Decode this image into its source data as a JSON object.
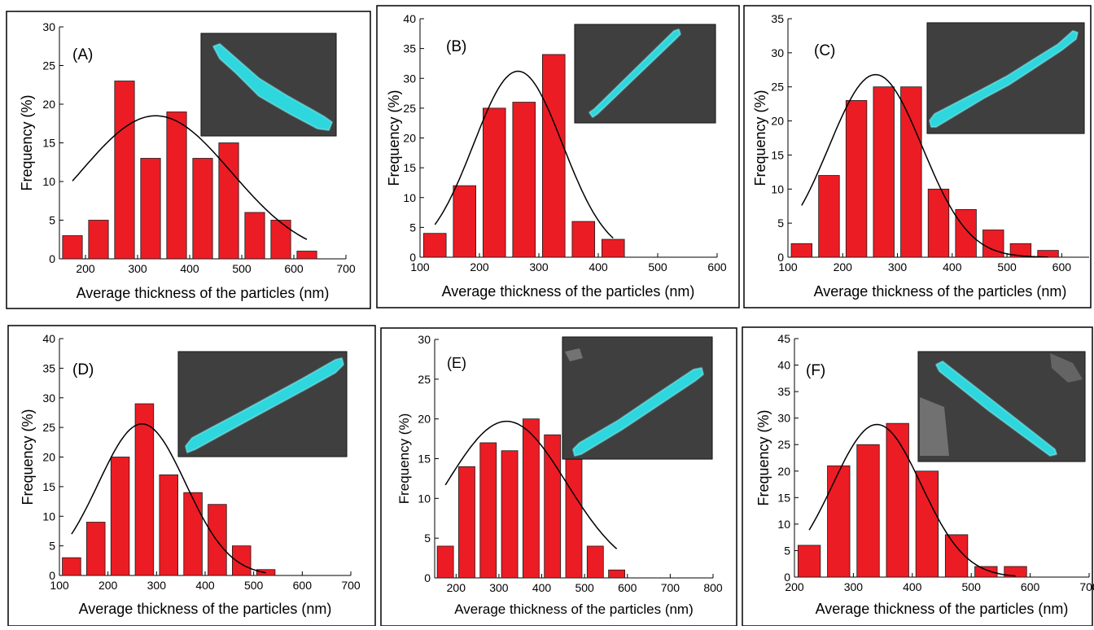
{
  "colors": {
    "bar_fill": "#ec1c24",
    "bar_stroke": "#1a1a1a",
    "curve": "#000000",
    "inset_bg": "#3a3a3a",
    "particle": "#2fd6dd"
  },
  "chart_data": [
    {
      "type": "bar",
      "panel_label": "(A)",
      "xlabel": "Average thickness of the particles (nm)",
      "ylabel": "Frequency (%)",
      "xlim": [
        150,
        700
      ],
      "ylim": [
        0,
        30
      ],
      "xticks": [
        "200",
        "300",
        "400",
        "500",
        "600",
        "700"
      ],
      "yticks": [
        "0",
        "5",
        "10",
        "15",
        "20",
        "25",
        "30"
      ],
      "bin_centers": [
        175,
        225,
        275,
        325,
        375,
        425,
        475,
        525,
        575,
        625
      ],
      "values": [
        3,
        5,
        23,
        13,
        19,
        13,
        15,
        6,
        5,
        1
      ],
      "fit": {
        "type": "gaussian",
        "mean": 335,
        "peak": 18.5,
        "sigma": 145,
        "x_range": [
          175,
          625
        ]
      },
      "inset": "sem-micrograph-particle",
      "legend": "none",
      "grid": false
    },
    {
      "type": "bar",
      "panel_label": "(B)",
      "xlabel": "Average thickness of the particles (nm)",
      "ylabel": "Frequency (%)",
      "xlim": [
        100,
        600
      ],
      "ylim": [
        0,
        40
      ],
      "xticks": [
        "100",
        "200",
        "300",
        "400",
        "500",
        "600"
      ],
      "yticks": [
        "0",
        "5",
        "10",
        "15",
        "20",
        "25",
        "30",
        "35",
        "40"
      ],
      "bin_centers": [
        125,
        175,
        225,
        275,
        325,
        375,
        425
      ],
      "values": [
        4,
        12,
        25,
        26,
        34,
        6,
        3
      ],
      "fit": {
        "type": "gaussian",
        "mean": 265,
        "peak": 31.2,
        "sigma": 75,
        "x_range": [
          125,
          425
        ]
      },
      "inset": "sem-micrograph-particle",
      "legend": "none",
      "grid": false
    },
    {
      "type": "bar",
      "panel_label": "(C)",
      "xlabel": "Average thickness of the particles (nm)",
      "ylabel": "Frequency (%)",
      "xlim": [
        100,
        650
      ],
      "ylim": [
        0,
        35
      ],
      "xticks": [
        "100",
        "200",
        "300",
        "400",
        "500",
        "600"
      ],
      "yticks": [
        "0",
        "5",
        "10",
        "15",
        "20",
        "25",
        "30",
        "35"
      ],
      "bin_centers": [
        125,
        175,
        225,
        275,
        325,
        375,
        425,
        475,
        525,
        575
      ],
      "values": [
        2,
        12,
        23,
        25,
        25,
        10,
        7,
        4,
        2,
        1
      ],
      "fit": {
        "type": "gaussian",
        "mean": 260,
        "peak": 26.8,
        "sigma": 85,
        "x_range": [
          125,
          575
        ]
      },
      "inset": "sem-micrograph-particle",
      "legend": "none",
      "grid": false
    },
    {
      "type": "bar",
      "panel_label": "(D)",
      "xlabel": "Average thickness of the particles (nm)",
      "ylabel": "Frequency (%)",
      "xlim": [
        100,
        700
      ],
      "ylim": [
        0,
        40
      ],
      "xticks": [
        "100",
        "200",
        "300",
        "400",
        "500",
        "600",
        "700"
      ],
      "yticks": [
        "0",
        "5",
        "10",
        "15",
        "20",
        "25",
        "30",
        "35",
        "40"
      ],
      "bin_centers": [
        125,
        175,
        225,
        275,
        325,
        375,
        425,
        475,
        525
      ],
      "values": [
        3,
        9,
        20,
        29,
        17,
        14,
        12,
        5,
        1
      ],
      "fit": {
        "type": "gaussian",
        "mean": 270,
        "peak": 25.6,
        "sigma": 90,
        "x_range": [
          125,
          525
        ]
      },
      "inset": "sem-micrograph-particle",
      "legend": "none",
      "grid": false
    },
    {
      "type": "bar",
      "panel_label": "(E)",
      "xlabel": "Average thickness of the particles (nm)",
      "ylabel": "Frequency (%)",
      "xlim": [
        150,
        800
      ],
      "ylim": [
        0,
        30
      ],
      "xticks": [
        "200",
        "300",
        "400",
        "500",
        "600",
        "700",
        "800"
      ],
      "yticks": [
        "0",
        "5",
        "10",
        "15",
        "20",
        "25",
        "30"
      ],
      "bin_centers": [
        175,
        225,
        275,
        325,
        375,
        425,
        475,
        525,
        575
      ],
      "values": [
        4,
        14,
        17,
        16,
        20,
        18,
        16,
        4,
        1
      ],
      "fit": {
        "type": "gaussian",
        "mean": 318,
        "peak": 19.7,
        "sigma": 140,
        "x_range": [
          175,
          575
        ]
      },
      "inset": "sem-micrograph-particle",
      "legend": "none",
      "grid": false
    },
    {
      "type": "bar",
      "panel_label": "(F)",
      "xlabel": "Average thickness of the particles (nm)",
      "ylabel": "Frequency (%)",
      "xlim": [
        200,
        700
      ],
      "ylim": [
        0,
        45
      ],
      "xticks": [
        "200",
        "300",
        "400",
        "500",
        "600",
        "700"
      ],
      "yticks": [
        "0",
        "5",
        "10",
        "15",
        "20",
        "25",
        "30",
        "35",
        "40",
        "45"
      ],
      "bin_centers": [
        225,
        275,
        325,
        375,
        425,
        475,
        525,
        575
      ],
      "values": [
        6,
        21,
        25,
        29,
        20,
        8,
        2,
        2
      ],
      "fit": {
        "type": "gaussian",
        "mean": 340,
        "peak": 28.8,
        "sigma": 75,
        "x_range": [
          225,
          575
        ]
      },
      "inset": "sem-micrograph-particle",
      "legend": "none",
      "grid": false
    }
  ]
}
